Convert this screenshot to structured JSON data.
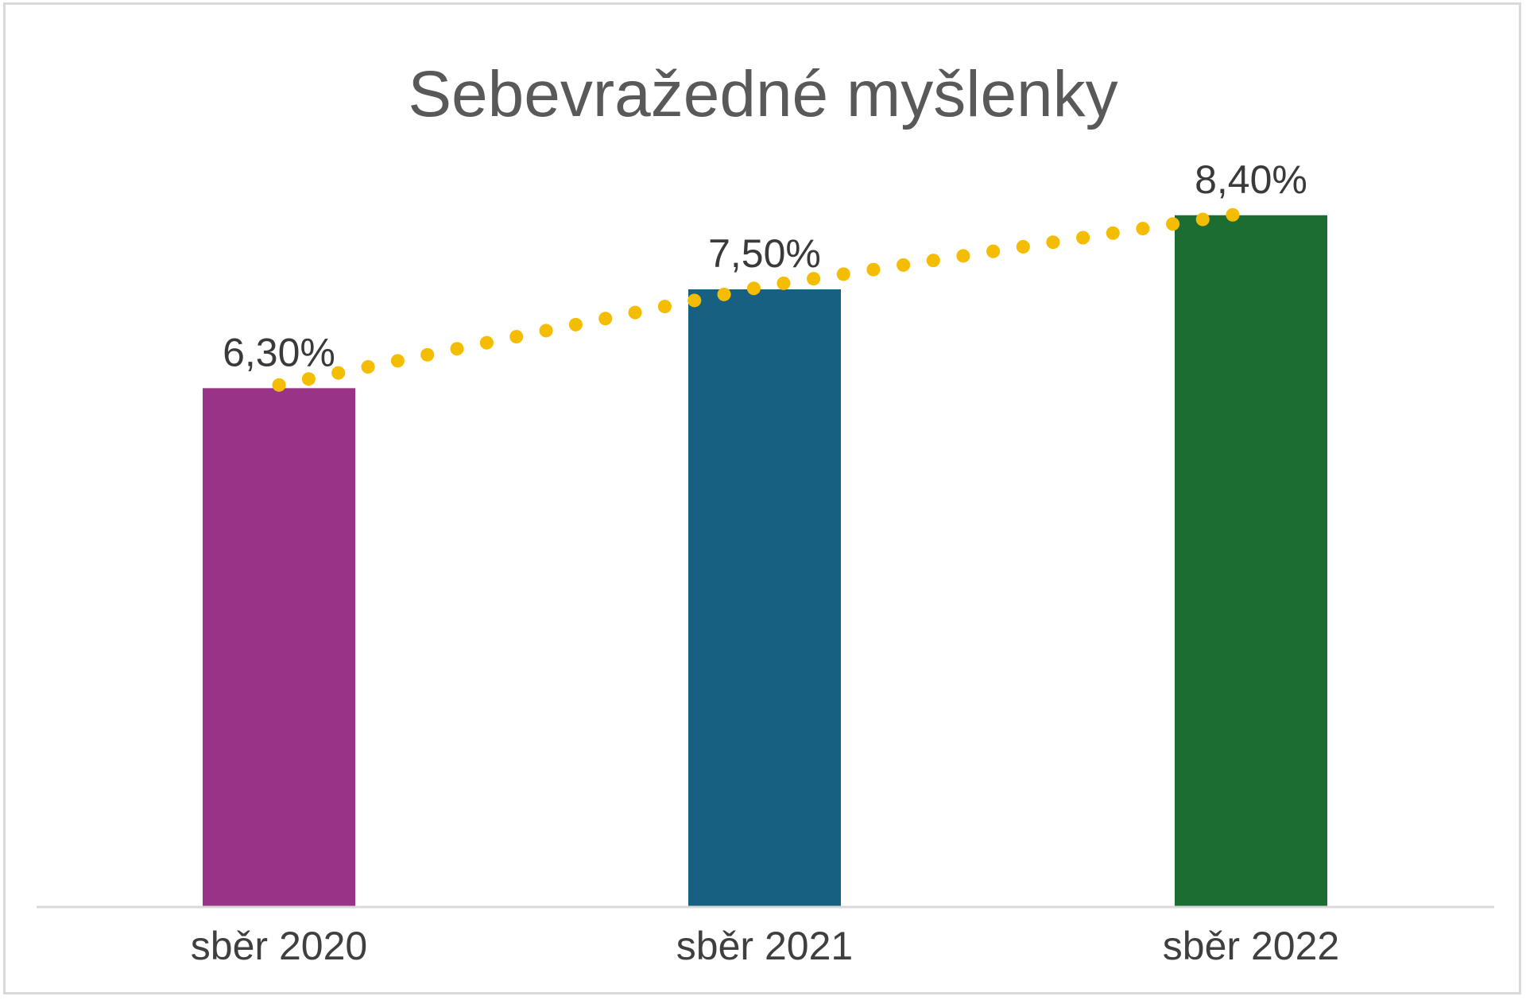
{
  "chart_data": {
    "type": "bar",
    "title": "Sebevražedné myšlenky",
    "categories": [
      "sběr 2020",
      "sběr 2021",
      "sběr 2022"
    ],
    "values": [
      6.3,
      7.5,
      8.4
    ],
    "value_labels": [
      "6,30%",
      "7,50%",
      "8,40%"
    ],
    "colors": [
      "#993388",
      "#186082",
      "#1c6d31"
    ],
    "trendline": {
      "style": "dotted",
      "color": "#f5bd02"
    },
    "xlabel": "",
    "ylabel": "",
    "ylim": [
      0,
      10
    ],
    "grid": false,
    "legend": "none"
  }
}
